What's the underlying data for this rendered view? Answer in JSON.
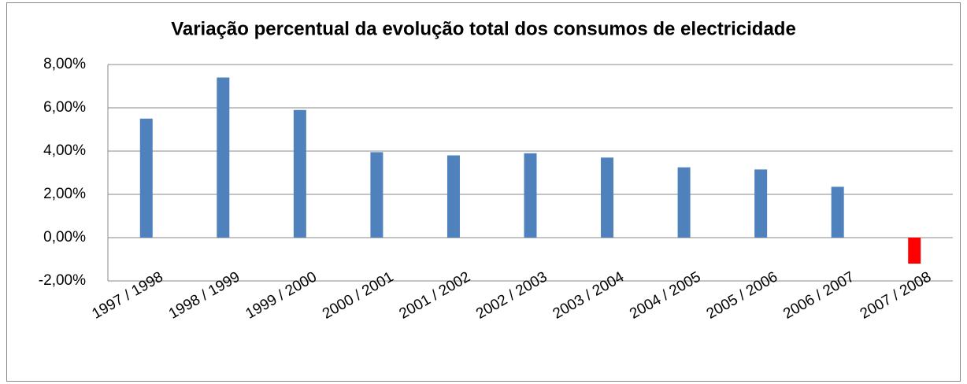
{
  "chart_data": {
    "type": "bar",
    "title": "Variação percentual da evolução total dos consumos de electricidade",
    "categories": [
      "1997 / 1998",
      "1998 / 1999",
      "1999 / 2000",
      "2000 / 2001",
      "2001 / 2002",
      "2002 / 2003",
      "2003 / 2004",
      "2004 / 2005",
      "2005 / 2006",
      "2006 / 2007",
      "2007 / 2008"
    ],
    "values": [
      5.5,
      7.4,
      5.9,
      3.95,
      3.8,
      3.9,
      3.7,
      3.25,
      3.15,
      2.35,
      -1.2
    ],
    "colors": [
      "#4f81bd",
      "#4f81bd",
      "#4f81bd",
      "#4f81bd",
      "#4f81bd",
      "#4f81bd",
      "#4f81bd",
      "#4f81bd",
      "#4f81bd",
      "#4f81bd",
      "#ff0000"
    ],
    "ylim": [
      -2,
      8
    ],
    "yticks": [
      {
        "value": -2,
        "label": "-2,00%"
      },
      {
        "value": 0,
        "label": "0,00%"
      },
      {
        "value": 2,
        "label": "2,00%"
      },
      {
        "value": 4,
        "label": "4,00%"
      },
      {
        "value": 6,
        "label": "6,00%"
      },
      {
        "value": 8,
        "label": "8,00%"
      }
    ],
    "grid": true
  }
}
